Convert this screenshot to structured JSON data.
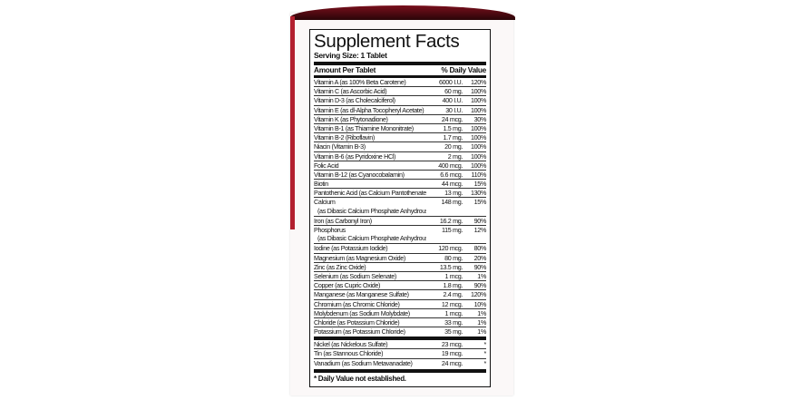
{
  "colors": {
    "box_red": "#b3202f",
    "box_top_dark": "#2a0508",
    "text": "#111111"
  },
  "title": "Supplement Facts",
  "serving_size": "Serving Size: 1 Tablet",
  "header": {
    "amount": "Amount Per Tablet",
    "dv": "% Daily Value"
  },
  "rows": [
    {
      "name": "Vitamin A (as 100% Beta Carotene)",
      "amount": "6000 I.U.",
      "dv": "120%"
    },
    {
      "name": "Vitamin C (as Ascorbic Acid)",
      "amount": "60 mg.",
      "dv": "100%"
    },
    {
      "name": "Vitamin D-3 (as Cholecalciferol)",
      "amount": "400 I.U.",
      "dv": "100%"
    },
    {
      "name": "Vitamin E (as dl-Alpha Tocopheryl Acetate)",
      "amount": "30 I.U.",
      "dv": "100%"
    },
    {
      "name": "Vitamin K (as Phytonadione)",
      "amount": "24 mcg.",
      "dv": "30%"
    },
    {
      "name": "Vitamin B-1 (as Thiamine Mononitrate)",
      "amount": "1.5 mg.",
      "dv": "100%"
    },
    {
      "name": "Vitamin B-2 (Riboflavin)",
      "amount": "1.7 mg.",
      "dv": "100%"
    },
    {
      "name": "Niacin (Vitamin B-3)",
      "amount": "20 mg.",
      "dv": "100%"
    },
    {
      "name": "Vitamin B-6 (as Pyridoxine HCl)",
      "amount": "2 mg.",
      "dv": "100%"
    },
    {
      "name": "Folic Acid",
      "amount": "400 mcg.",
      "dv": "100%"
    },
    {
      "name": "Vitamin B-12 (as Cyanocobalamin)",
      "amount": "6.6 mcg.",
      "dv": "110%"
    },
    {
      "name": "Biotin",
      "amount": "44 mcg.",
      "dv": "15%"
    },
    {
      "name": "Pantothenic Acid (as Calcium Pantothenate)",
      "amount": "13 mg.",
      "dv": "130%"
    },
    {
      "name": "Calcium",
      "sub": "(as Dibasic Calcium Phosphate Anhydrous)",
      "amount": "148 mg.",
      "dv": "15%"
    },
    {
      "name": "Iron (as Carbonyl Iron)",
      "amount": "16.2 mg.",
      "dv": "90%"
    },
    {
      "name": "Phosphorus",
      "sub": "(as Dibasic Calcium Phosphate Anhydrous)",
      "amount": "115 mg.",
      "dv": "12%"
    },
    {
      "name": "Iodine (as Potassium Iodide)",
      "amount": "120 mcg.",
      "dv": "80%"
    },
    {
      "name": "Magnesium (as Magnesium Oxide)",
      "amount": "80 mg.",
      "dv": "20%"
    },
    {
      "name": "Zinc (as Zinc Oxide)",
      "amount": "13.5 mg.",
      "dv": "90%"
    },
    {
      "name": "Selenium (as Sodium Selenate)",
      "amount": "1 mcg.",
      "dv": "1%"
    },
    {
      "name": "Copper (as Cupric Oxide)",
      "amount": "1.8 mg.",
      "dv": "90%"
    },
    {
      "name": "Manganese (as Manganese Sulfate)",
      "amount": "2.4 mg.",
      "dv": "120%"
    },
    {
      "name": "Chromium (as Chromic Chloride)",
      "amount": "12 mcg.",
      "dv": "10%"
    },
    {
      "name": "Molybdenum (as Sodium Molybdate)",
      "amount": "1 mcg.",
      "dv": "1%"
    },
    {
      "name": "Chloride (as Potassium Chloride)",
      "amount": "33 mg.",
      "dv": "1%"
    },
    {
      "name": "Potassium (as Potassium Chloride)",
      "amount": "35 mg.",
      "dv": "1%"
    }
  ],
  "extra_rows": [
    {
      "name": "Nickel (as Nickelous Sulfate)",
      "amount": "23 mcg.",
      "dv": "*"
    },
    {
      "name": "Tin (as Stannous Chloride)",
      "amount": "19 mcg.",
      "dv": "*"
    },
    {
      "name": "Vanadium (as Sodium Metavanadate)",
      "amount": "24 mcg.",
      "dv": "*"
    }
  ],
  "footnote": "* Daily Value not established."
}
